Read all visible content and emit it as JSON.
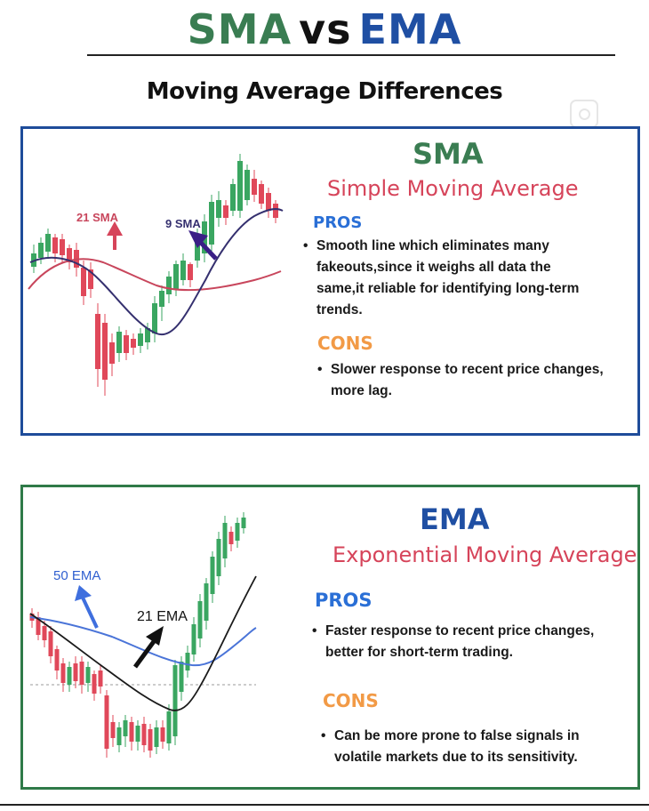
{
  "header": {
    "title_sma": "SMA",
    "title_vs": "vs",
    "title_ema": "EMA",
    "subtitle": "Moving Average Differences"
  },
  "sma_panel": {
    "heading": "SMA",
    "subheading": "Simple Moving Average",
    "pros_label": "PROS",
    "pros_text": [
      "Smooth line which eliminates many",
      "fakeouts,since it weighs all data the",
      "same,it reliable for identifying long-term",
      "trends."
    ],
    "cons_label": "CONS",
    "cons_text": [
      "Slower response to recent price changes,",
      "more lag."
    ],
    "chart_labels": {
      "slow": "21 SMA",
      "fast": "9 SMA"
    },
    "colors": {
      "heading": "#3a7d52",
      "slow_line": "#c8465c",
      "fast_line": "#35306f",
      "border": "#1e4c9a"
    }
  },
  "ema_panel": {
    "heading": "EMA",
    "subheading": "Exponential Moving Average",
    "pros_label": "PROS",
    "pros_text": [
      "Faster response to recent price changes,",
      "better for short-term trading."
    ],
    "cons_label": "CONS",
    "cons_text": [
      "Can be more prone to false signals in",
      "volatile markets due to its sensitivity."
    ],
    "chart_labels": {
      "slow": "50 EMA",
      "fast": "21 EMA"
    },
    "colors": {
      "heading": "#1f4fa3",
      "slow_line": "#4a74d8",
      "fast_line": "#1a1a1a",
      "border": "#2f7a48"
    }
  },
  "colors": {
    "bull_candle": "#3aa661",
    "bear_candle": "#e0485a"
  },
  "icons": {
    "watermark": "camera-icon",
    "pointer_arrows": "arrow-icon"
  }
}
